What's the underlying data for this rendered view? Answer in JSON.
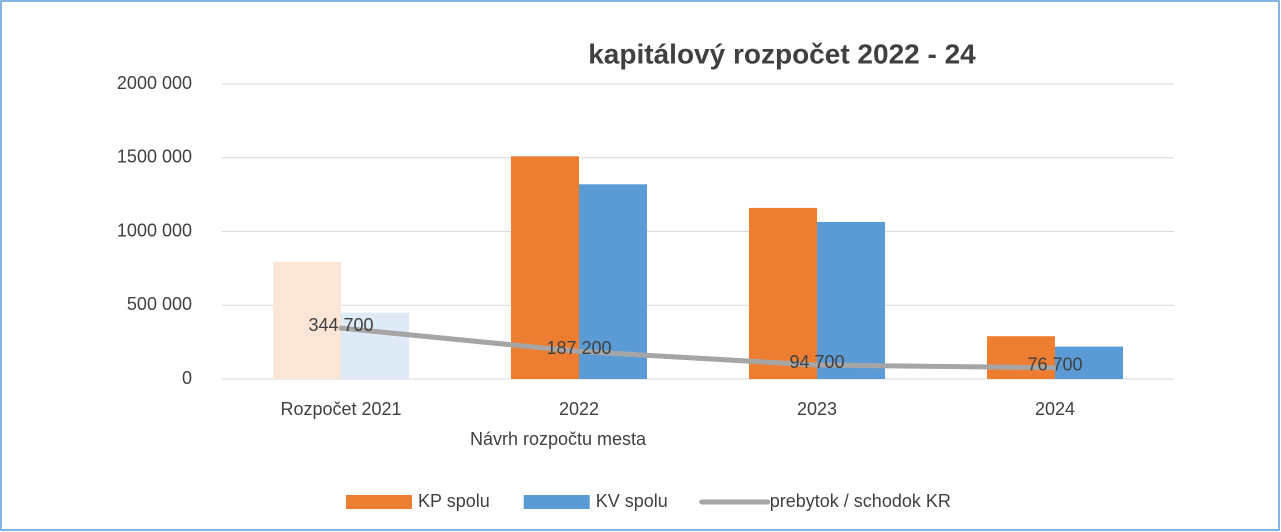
{
  "chart_data": {
    "type": "bar_line",
    "title": "kapitálový rozpočet 2022 - 24",
    "categories": [
      "Rozpočet 2021",
      "2022",
      "2023",
      "2024"
    ],
    "x_group_label": "Návrh rozpočtu mesta",
    "series": [
      {
        "name": "KP spolu",
        "type": "bar",
        "color": "#ed7d31",
        "point_colors": [
          "#fbe5d6",
          "#ed7d31",
          "#ed7d31",
          "#ed7d31"
        ],
        "values": [
          795000,
          1510000,
          1160000,
          290000
        ]
      },
      {
        "name": "KV spolu",
        "type": "bar",
        "color": "#5b9bd5",
        "point_colors": [
          "#deebf7",
          "#5b9bd5",
          "#5b9bd5",
          "#5b9bd5"
        ],
        "values": [
          450000,
          1320000,
          1065000,
          220000
        ]
      },
      {
        "name": "prebytok / schodok KR",
        "type": "line",
        "color": "#a5a5a5",
        "values": [
          344700,
          187200,
          94700,
          76700
        ],
        "value_labels": [
          "344 700",
          "187 200",
          "94 700",
          "76 700"
        ]
      }
    ],
    "ylim": [
      0,
      2000000
    ],
    "yticks": [
      0,
      {
        "value": 500000,
        "label": "500 000"
      },
      {
        "value": 1000000,
        "label": "1000 000"
      },
      {
        "value": 1500000,
        "label": "1500 000"
      },
      {
        "value": 2000000,
        "label": "2000 000"
      }
    ],
    "grid": true,
    "legend": "bottom"
  }
}
